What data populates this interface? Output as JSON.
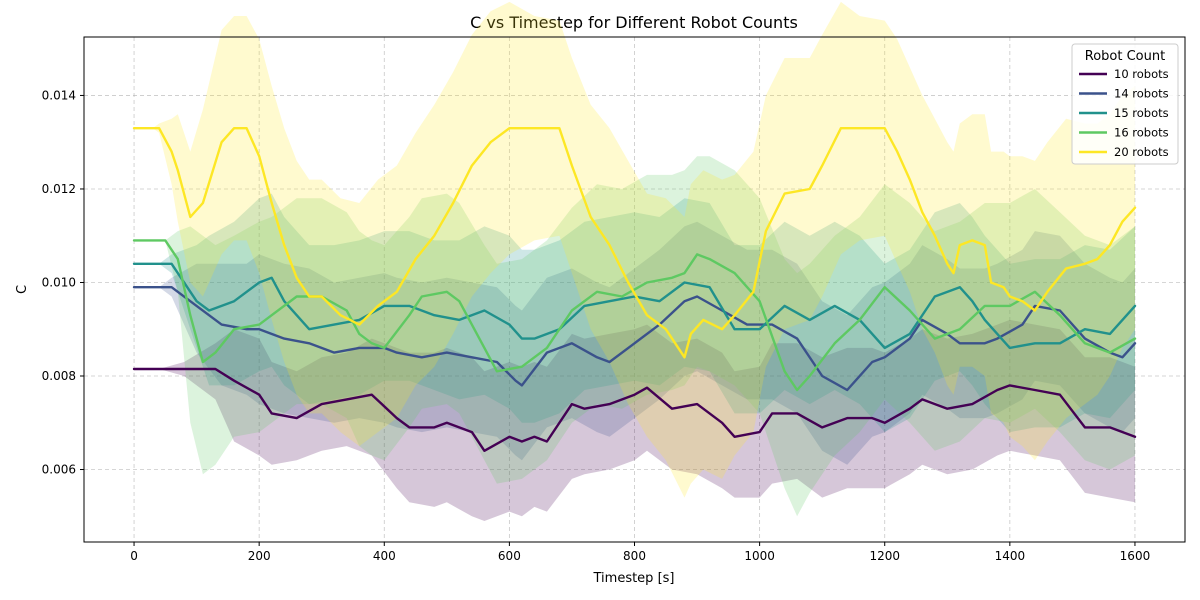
{
  "chart_data": {
    "type": "line",
    "title": "C vs Timestep for Different Robot Counts",
    "xlabel": "Timestep [s]",
    "ylabel": "C",
    "xlim": [
      -80,
      1680
    ],
    "ylim": [
      0.00445,
      0.01525
    ],
    "xticks": [
      0,
      200,
      400,
      600,
      800,
      1000,
      1200,
      1400,
      1600
    ],
    "yticks": [
      0.006,
      0.008,
      0.01,
      0.012,
      0.014
    ],
    "ytick_labels": [
      "0.006",
      "0.008",
      "0.010",
      "0.012",
      "0.014"
    ],
    "grid": true,
    "legend": {
      "title": "Robot Count",
      "position": "top-right"
    },
    "series": [
      {
        "name": "10 robots",
        "color": "#440154",
        "x": [
          0,
          40,
          80,
          130,
          160,
          200,
          220,
          260,
          300,
          340,
          380,
          420,
          440,
          480,
          500,
          540,
          560,
          600,
          620,
          640,
          660,
          700,
          720,
          760,
          800,
          820,
          860,
          900,
          940,
          960,
          1000,
          1020,
          1060,
          1100,
          1140,
          1180,
          1200,
          1240,
          1260,
          1300,
          1340,
          1380,
          1400,
          1440,
          1480,
          1520,
          1560,
          1600
        ],
        "y": [
          0.00815,
          0.00815,
          0.00815,
          0.00815,
          0.0079,
          0.0076,
          0.0072,
          0.0071,
          0.0074,
          0.0075,
          0.0076,
          0.0071,
          0.0069,
          0.0069,
          0.007,
          0.0068,
          0.0064,
          0.0067,
          0.0066,
          0.0067,
          0.0066,
          0.0074,
          0.0073,
          0.0074,
          0.0076,
          0.00775,
          0.0073,
          0.0074,
          0.007,
          0.0067,
          0.0068,
          0.0072,
          0.0072,
          0.0069,
          0.0071,
          0.0071,
          0.007,
          0.0073,
          0.0075,
          0.0073,
          0.0074,
          0.0077,
          0.0078,
          0.0077,
          0.0076,
          0.0069,
          0.0069,
          0.0067
        ],
        "lower": [
          0.00815,
          0.00815,
          0.008,
          0.0075,
          0.0066,
          0.0063,
          0.0061,
          0.0062,
          0.0064,
          0.0065,
          0.0063,
          0.0056,
          0.0053,
          0.0052,
          0.0053,
          0.005,
          0.0049,
          0.0051,
          0.005,
          0.0052,
          0.0051,
          0.0058,
          0.0059,
          0.006,
          0.0062,
          0.0064,
          0.006,
          0.0059,
          0.0056,
          0.0054,
          0.0054,
          0.0057,
          0.0058,
          0.0054,
          0.0056,
          0.0056,
          0.0056,
          0.0059,
          0.0061,
          0.0059,
          0.006,
          0.0063,
          0.0064,
          0.0063,
          0.0062,
          0.0055,
          0.0054,
          0.0053
        ],
        "upper": [
          0.00815,
          0.00815,
          0.0083,
          0.0087,
          0.009,
          0.0088,
          0.0083,
          0.0081,
          0.0084,
          0.0085,
          0.0088,
          0.0086,
          0.0085,
          0.0085,
          0.0086,
          0.0084,
          0.0081,
          0.0083,
          0.0082,
          0.0083,
          0.0082,
          0.0089,
          0.0088,
          0.0089,
          0.009,
          0.0091,
          0.0087,
          0.0088,
          0.0085,
          0.0081,
          0.0082,
          0.0087,
          0.0087,
          0.0084,
          0.0086,
          0.0086,
          0.0085,
          0.0088,
          0.009,
          0.0088,
          0.0089,
          0.0091,
          0.0092,
          0.0091,
          0.009,
          0.0084,
          0.0084,
          0.0082
        ]
      },
      {
        "name": "14 robots",
        "color": "#3b528b",
        "x": [
          0,
          40,
          60,
          100,
          140,
          180,
          200,
          240,
          280,
          320,
          360,
          400,
          420,
          460,
          500,
          540,
          580,
          610,
          620,
          660,
          700,
          740,
          760,
          800,
          840,
          880,
          900,
          940,
          980,
          1020,
          1060,
          1100,
          1140,
          1180,
          1200,
          1240,
          1260,
          1300,
          1320,
          1360,
          1380,
          1420,
          1440,
          1480,
          1520,
          1560,
          1580,
          1600
        ],
        "y": [
          0.0099,
          0.0099,
          0.0099,
          0.0095,
          0.0091,
          0.009,
          0.009,
          0.0088,
          0.0087,
          0.0085,
          0.0086,
          0.0086,
          0.0085,
          0.0084,
          0.0085,
          0.0084,
          0.0083,
          0.0079,
          0.0078,
          0.0085,
          0.0087,
          0.0084,
          0.0083,
          0.0087,
          0.0091,
          0.0096,
          0.0097,
          0.0094,
          0.0091,
          0.0091,
          0.0088,
          0.008,
          0.0077,
          0.0083,
          0.0084,
          0.0088,
          0.0092,
          0.0089,
          0.0087,
          0.0087,
          0.0088,
          0.0091,
          0.0095,
          0.0094,
          0.0088,
          0.0085,
          0.0084,
          0.0087
        ],
        "lower": [
          0.0099,
          0.0099,
          0.0097,
          0.0085,
          0.0078,
          0.0076,
          0.0074,
          0.0072,
          0.0071,
          0.007,
          0.0071,
          0.007,
          0.0069,
          0.0068,
          0.0069,
          0.0068,
          0.0067,
          0.0063,
          0.0062,
          0.0069,
          0.0071,
          0.0068,
          0.0067,
          0.0071,
          0.0075,
          0.008,
          0.0081,
          0.0078,
          0.0075,
          0.0075,
          0.0072,
          0.0064,
          0.0061,
          0.0067,
          0.0068,
          0.0072,
          0.0076,
          0.0073,
          0.0071,
          0.0071,
          0.0072,
          0.0075,
          0.0079,
          0.0078,
          0.0072,
          0.0069,
          0.0068,
          0.0071
        ],
        "upper": [
          0.0099,
          0.0099,
          0.0101,
          0.0104,
          0.0104,
          0.0104,
          0.0106,
          0.0104,
          0.0103,
          0.01,
          0.0101,
          0.0102,
          0.0101,
          0.01,
          0.0101,
          0.01,
          0.0099,
          0.0095,
          0.0094,
          0.0101,
          0.0103,
          0.01,
          0.0099,
          0.0103,
          0.0107,
          0.0112,
          0.0113,
          0.011,
          0.0107,
          0.0107,
          0.0104,
          0.0096,
          0.0093,
          0.0099,
          0.01,
          0.0104,
          0.0108,
          0.0105,
          0.0103,
          0.0103,
          0.0104,
          0.0107,
          0.0111,
          0.011,
          0.0104,
          0.0101,
          0.01,
          0.0103
        ]
      },
      {
        "name": "15 robots",
        "color": "#21918c",
        "x": [
          0,
          40,
          60,
          100,
          120,
          160,
          200,
          220,
          240,
          260,
          280,
          320,
          360,
          400,
          440,
          480,
          520,
          560,
          600,
          620,
          640,
          680,
          720,
          760,
          800,
          840,
          880,
          920,
          960,
          1000,
          1040,
          1080,
          1120,
          1160,
          1200,
          1240,
          1280,
          1320,
          1340,
          1360,
          1400,
          1440,
          1480,
          1520,
          1560,
          1600
        ],
        "y": [
          0.0104,
          0.0104,
          0.0104,
          0.0096,
          0.0094,
          0.0096,
          0.01,
          0.0101,
          0.0096,
          0.0093,
          0.009,
          0.0091,
          0.0092,
          0.0095,
          0.0095,
          0.0093,
          0.0092,
          0.0094,
          0.0091,
          0.0088,
          0.0088,
          0.009,
          0.0095,
          0.0096,
          0.0097,
          0.0096,
          0.01,
          0.0099,
          0.009,
          0.009,
          0.0095,
          0.0092,
          0.0095,
          0.0092,
          0.0086,
          0.0089,
          0.0097,
          0.0099,
          0.0096,
          0.0092,
          0.0086,
          0.0087,
          0.0087,
          0.009,
          0.0089,
          0.0095
        ],
        "lower": [
          0.0104,
          0.0104,
          0.0102,
          0.0086,
          0.0078,
          0.0078,
          0.0081,
          0.0082,
          0.0078,
          0.0076,
          0.0074,
          0.0075,
          0.0076,
          0.0079,
          0.0079,
          0.0077,
          0.0075,
          0.0076,
          0.0073,
          0.007,
          0.007,
          0.0072,
          0.0077,
          0.0078,
          0.0079,
          0.0078,
          0.0082,
          0.0081,
          0.0072,
          0.0072,
          0.0077,
          0.0074,
          0.0077,
          0.0074,
          0.0068,
          0.0071,
          0.0079,
          0.0081,
          0.0078,
          0.0074,
          0.0068,
          0.0069,
          0.0069,
          0.0072,
          0.0071,
          0.0077
        ],
        "upper": [
          0.0104,
          0.0104,
          0.0106,
          0.0108,
          0.011,
          0.0113,
          0.0118,
          0.0119,
          0.0114,
          0.0111,
          0.0108,
          0.0108,
          0.0109,
          0.0111,
          0.0111,
          0.0109,
          0.0109,
          0.0112,
          0.011,
          0.0107,
          0.0107,
          0.0109,
          0.0113,
          0.0114,
          0.0115,
          0.0114,
          0.0118,
          0.0117,
          0.0108,
          0.0108,
          0.0113,
          0.011,
          0.0113,
          0.011,
          0.0104,
          0.0107,
          0.0115,
          0.0117,
          0.0114,
          0.011,
          0.0104,
          0.0105,
          0.0105,
          0.0108,
          0.0107,
          0.0112
        ]
      },
      {
        "name": "16 robots",
        "color": "#5ec962",
        "x": [
          0,
          50,
          70,
          90,
          110,
          130,
          160,
          200,
          220,
          260,
          300,
          340,
          360,
          380,
          400,
          440,
          460,
          500,
          520,
          560,
          580,
          620,
          660,
          700,
          740,
          780,
          820,
          860,
          880,
          900,
          920,
          960,
          1000,
          1040,
          1060,
          1080,
          1120,
          1160,
          1200,
          1240,
          1280,
          1320,
          1360,
          1400,
          1440,
          1480,
          1520,
          1560,
          1600
        ],
        "y": [
          0.0109,
          0.0109,
          0.0105,
          0.0093,
          0.0083,
          0.0085,
          0.009,
          0.0091,
          0.0093,
          0.0097,
          0.0097,
          0.0094,
          0.0089,
          0.0087,
          0.0086,
          0.0093,
          0.0097,
          0.0098,
          0.0096,
          0.0086,
          0.0081,
          0.0082,
          0.0086,
          0.0094,
          0.0098,
          0.0097,
          0.01,
          0.0101,
          0.0102,
          0.0106,
          0.0105,
          0.0102,
          0.0096,
          0.0081,
          0.0077,
          0.008,
          0.0087,
          0.0092,
          0.0099,
          0.0094,
          0.0088,
          0.009,
          0.0095,
          0.0095,
          0.0098,
          0.0093,
          0.0087,
          0.0085,
          0.0088
        ],
        "lower": [
          0.0109,
          0.0109,
          0.0098,
          0.007,
          0.0059,
          0.0061,
          0.0067,
          0.0068,
          0.007,
          0.0074,
          0.0074,
          0.0071,
          0.0065,
          0.0063,
          0.0062,
          0.0069,
          0.0073,
          0.0074,
          0.0072,
          0.0062,
          0.0057,
          0.0058,
          0.0062,
          0.007,
          0.0074,
          0.0073,
          0.0076,
          0.0077,
          0.0078,
          0.0082,
          0.0081,
          0.0078,
          0.0072,
          0.0056,
          0.005,
          0.0055,
          0.0063,
          0.0068,
          0.0075,
          0.007,
          0.0064,
          0.0066,
          0.0071,
          0.007,
          0.0073,
          0.0068,
          0.0062,
          0.006,
          0.0063
        ],
        "upper": [
          0.0109,
          0.0109,
          0.0111,
          0.0112,
          0.011,
          0.0108,
          0.011,
          0.0113,
          0.0114,
          0.0118,
          0.0118,
          0.0115,
          0.0111,
          0.0109,
          0.0108,
          0.0114,
          0.0118,
          0.0119,
          0.0117,
          0.0108,
          0.0104,
          0.0105,
          0.0109,
          0.0116,
          0.0121,
          0.012,
          0.0123,
          0.0123,
          0.0124,
          0.0127,
          0.0127,
          0.0124,
          0.0118,
          0.0105,
          0.0102,
          0.0104,
          0.011,
          0.0114,
          0.0121,
          0.0117,
          0.0111,
          0.0113,
          0.0117,
          0.0117,
          0.012,
          0.0115,
          0.011,
          0.0108,
          0.0112
        ]
      },
      {
        "name": "20 robots",
        "color": "#fde725",
        "x": [
          0,
          30,
          40,
          60,
          70,
          90,
          110,
          140,
          160,
          180,
          200,
          220,
          240,
          260,
          280,
          300,
          330,
          360,
          390,
          420,
          450,
          480,
          510,
          540,
          570,
          600,
          640,
          680,
          700,
          730,
          760,
          790,
          820,
          850,
          880,
          890,
          910,
          940,
          960,
          990,
          1010,
          1040,
          1080,
          1100,
          1130,
          1160,
          1200,
          1220,
          1240,
          1260,
          1280,
          1300,
          1310,
          1320,
          1340,
          1360,
          1370,
          1390,
          1400,
          1420,
          1440,
          1460,
          1490,
          1520,
          1540,
          1560,
          1580,
          1600
        ],
        "y": [
          0.0133,
          0.0133,
          0.0133,
          0.0128,
          0.0124,
          0.0114,
          0.0117,
          0.013,
          0.0133,
          0.0133,
          0.0127,
          0.0117,
          0.0108,
          0.0101,
          0.0097,
          0.0097,
          0.0093,
          0.0091,
          0.0095,
          0.0098,
          0.0105,
          0.011,
          0.0117,
          0.0125,
          0.013,
          0.0133,
          0.0133,
          0.0133,
          0.0125,
          0.0114,
          0.0108,
          0.01,
          0.0093,
          0.009,
          0.0084,
          0.0089,
          0.0092,
          0.009,
          0.0093,
          0.0098,
          0.0111,
          0.0119,
          0.012,
          0.0125,
          0.0133,
          0.0133,
          0.0133,
          0.0128,
          0.0122,
          0.0115,
          0.011,
          0.0104,
          0.0102,
          0.0108,
          0.0109,
          0.0108,
          0.01,
          0.0099,
          0.0097,
          0.0096,
          0.0094,
          0.0098,
          0.0103,
          0.0104,
          0.0105,
          0.0108,
          0.0113,
          0.0116
        ],
        "lower": [
          0.0133,
          0.0133,
          0.0132,
          0.0121,
          0.0113,
          0.01,
          0.0097,
          0.0106,
          0.0109,
          0.0109,
          0.0102,
          0.0092,
          0.0083,
          0.0076,
          0.0072,
          0.0072,
          0.0068,
          0.0065,
          0.0068,
          0.0071,
          0.0078,
          0.0082,
          0.0089,
          0.0097,
          0.0102,
          0.0106,
          0.0109,
          0.011,
          0.0102,
          0.009,
          0.0083,
          0.0074,
          0.0067,
          0.0062,
          0.0054,
          0.0057,
          0.006,
          0.0058,
          0.0063,
          0.0068,
          0.0082,
          0.009,
          0.0092,
          0.0097,
          0.0106,
          0.0109,
          0.011,
          0.0104,
          0.0098,
          0.009,
          0.0085,
          0.0078,
          0.0076,
          0.0082,
          0.0082,
          0.008,
          0.0072,
          0.007,
          0.0067,
          0.0065,
          0.0062,
          0.0066,
          0.0071,
          0.0074,
          0.0076,
          0.008,
          0.0086,
          0.009
        ],
        "upper": [
          0.0133,
          0.0133,
          0.0134,
          0.0135,
          0.0136,
          0.0128,
          0.0137,
          0.0154,
          0.0157,
          0.0157,
          0.0152,
          0.0142,
          0.0133,
          0.0126,
          0.0122,
          0.0122,
          0.0118,
          0.0117,
          0.0122,
          0.0125,
          0.0132,
          0.0138,
          0.0145,
          0.0153,
          0.0158,
          0.016,
          0.0157,
          0.0156,
          0.0148,
          0.0138,
          0.0133,
          0.0126,
          0.0119,
          0.0118,
          0.0114,
          0.0121,
          0.0124,
          0.0122,
          0.0123,
          0.0128,
          0.014,
          0.0148,
          0.0148,
          0.0153,
          0.016,
          0.0157,
          0.0156,
          0.0152,
          0.0146,
          0.014,
          0.0135,
          0.013,
          0.0128,
          0.0134,
          0.0136,
          0.0136,
          0.0128,
          0.0128,
          0.0127,
          0.0127,
          0.0126,
          0.013,
          0.0135,
          0.0134,
          0.0134,
          0.0136,
          0.014,
          0.0142
        ]
      }
    ]
  }
}
